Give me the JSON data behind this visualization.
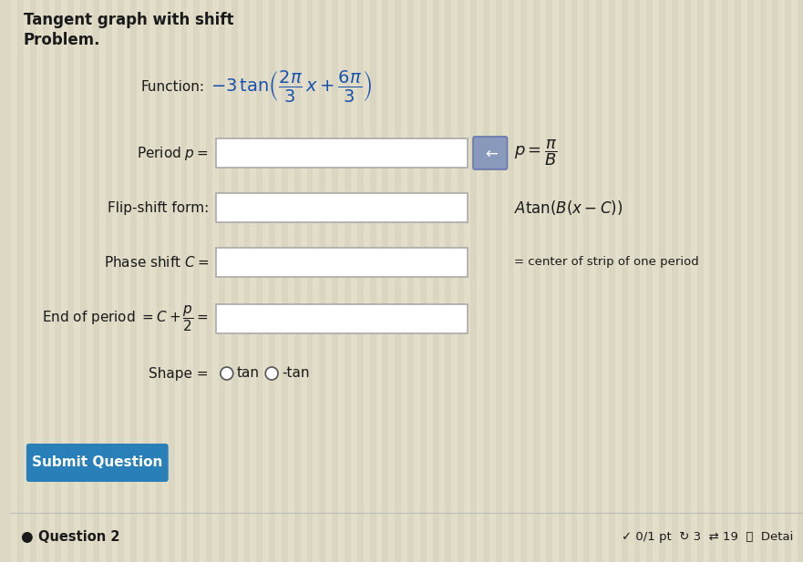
{
  "title_line1": "Tangent graph with shift",
  "title_line2": "Problem.",
  "function_label": "Function:",
  "period_label": "Period $p=$",
  "flip_label": "Flip-shift form:",
  "phase_label": "Phase shift $C=$",
  "end_label": "End of period $= C + \\dfrac{p}{2} =$",
  "shape_label": "Shape =",
  "hint_period": "$p=\\dfrac{\\pi}{B}$",
  "hint_flip": "$A\\tan(B(x-C))$",
  "hint_phase": "= center of strip of one period",
  "shape_tan": "tan",
  "shape_negtan": "-tan",
  "submit_text": "Submit Question",
  "footer_text": "Question 2",
  "footer_right": "✓ 0/1 pt  ↻ 3  ⇄ 19  ⓘ  Detai",
  "bg_color": "#ddd8c4",
  "box_fill": "#ffffff",
  "box_edge": "#aaaaaa",
  "button_color": "#2980b9",
  "hint_box_color": "#8899bb",
  "hint_box_edge": "#6677aa",
  "blue_text_color": "#1a52b0",
  "dark_text": "#1a1a1a",
  "stripe_color": "#e8e4d0",
  "stripe_color2": "#d8d3be"
}
